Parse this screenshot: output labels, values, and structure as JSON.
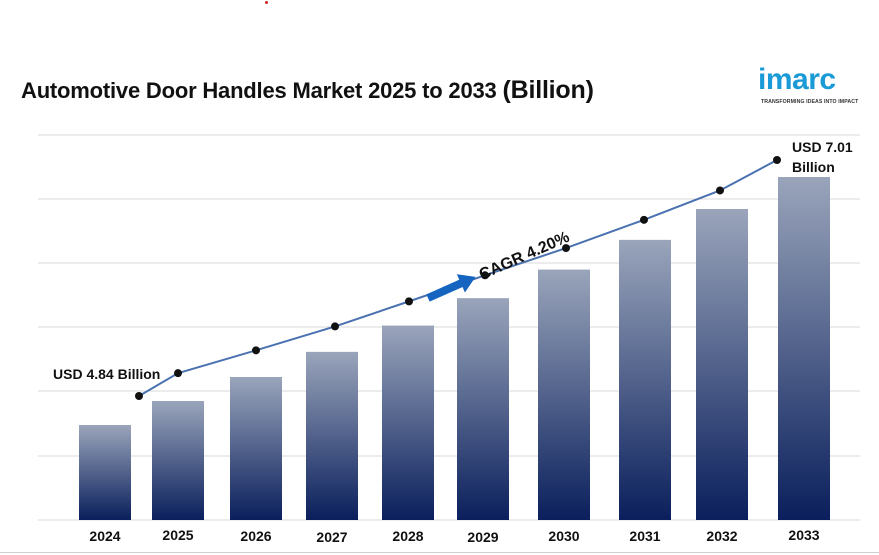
{
  "title": {
    "main": "Automotive Door Handles Market 2025 to 2033 ",
    "unit": "(Billion)"
  },
  "logo": {
    "name": "imarc",
    "tagline": "TRANSFORMING IDEAS INTO IMPACT",
    "color": "#1a9ad6"
  },
  "colors": {
    "bar_top": "#9aa5bb",
    "bar_bottom": "#0a1f5c",
    "line": "#4a72b0",
    "marker": "#111111",
    "arrow": "#1565c0",
    "grid": "#d9d9d9"
  },
  "chart_data": {
    "type": "bar",
    "categories": [
      "2024",
      "2025",
      "2026",
      "2027",
      "2028",
      "2029",
      "2030",
      "2031",
      "2032",
      "2033"
    ],
    "values": [
      4.84,
      5.05,
      5.26,
      5.48,
      5.71,
      5.95,
      6.2,
      6.46,
      6.73,
      7.01
    ],
    "line_values": [
      4.84,
      5.05,
      5.26,
      5.48,
      5.71,
      5.95,
      6.2,
      6.46,
      6.73,
      7.01
    ],
    "grid": true,
    "annotations": {
      "start": "USD 4.84 Billion",
      "end_line1": "USD 7.01",
      "end_line2": "Billion",
      "cagr": "CAGR 4.20%"
    }
  }
}
